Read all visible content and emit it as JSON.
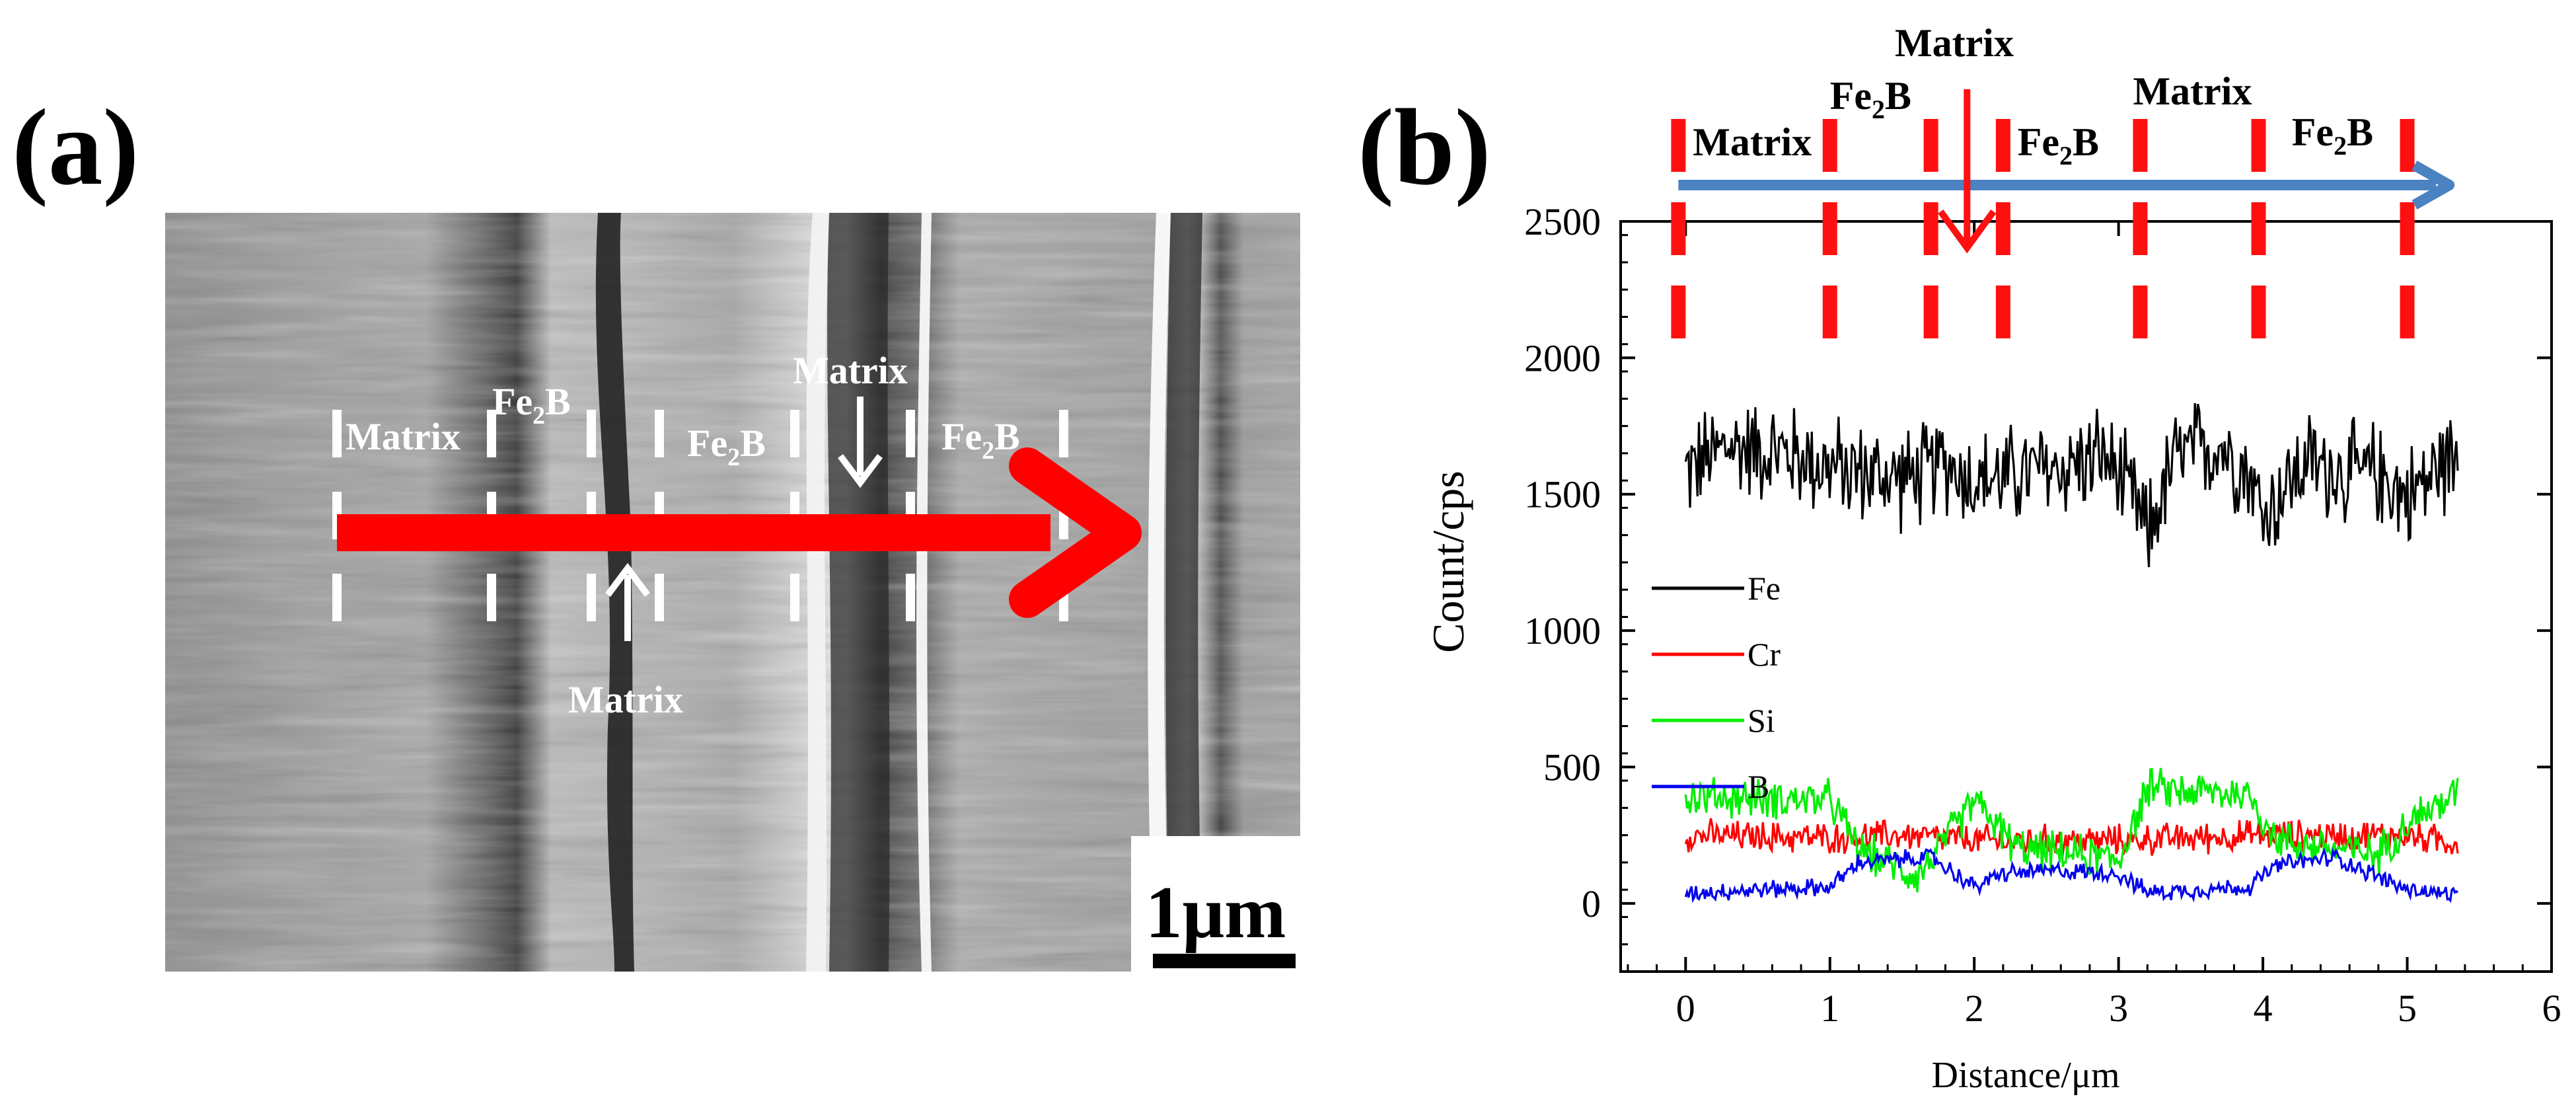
{
  "figure": {
    "panel_a_label": "(a)",
    "panel_b_label": "(b)"
  },
  "sem": {
    "scale_bar": "1μm",
    "phase_labels": [
      {
        "name": "Matrix",
        "sub": ""
      },
      {
        "name": "Fe",
        "sub": "2",
        "suffix": "B"
      },
      {
        "name": "Fe",
        "sub": "2",
        "suffix": "B"
      },
      {
        "name": "Matrix",
        "sub": ""
      },
      {
        "name": "Fe",
        "sub": "2",
        "suffix": "B"
      }
    ],
    "lower_label": "Matrix",
    "colors": {
      "arrow": "#ff0000",
      "dash": "#ffffff"
    }
  },
  "chart_data": {
    "type": "line",
    "title": "",
    "xlabel": "Distance/μm",
    "ylabel": "Count/cps",
    "xlim": [
      -0.45,
      6
    ],
    "ylim": [
      -250,
      2500
    ],
    "xticks": [
      0,
      1,
      2,
      3,
      4,
      5,
      6
    ],
    "yticks": [
      0,
      500,
      1000,
      1500,
      2000,
      2500
    ],
    "legend_position": "center-left",
    "series": [
      {
        "name": "Fe",
        "color": "#000000",
        "x_range": [
          0,
          5.35
        ],
        "profile": [
          [
            0,
            1580
          ],
          [
            0.3,
            1680
          ],
          [
            0.7,
            1650
          ],
          [
            1.0,
            1600
          ],
          [
            1.3,
            1570
          ],
          [
            1.6,
            1560
          ],
          [
            1.8,
            1620
          ],
          [
            2.0,
            1550
          ],
          [
            2.3,
            1570
          ],
          [
            2.6,
            1600
          ],
          [
            2.9,
            1640
          ],
          [
            3.1,
            1480
          ],
          [
            3.2,
            1350
          ],
          [
            3.4,
            1640
          ],
          [
            3.7,
            1680
          ],
          [
            3.9,
            1590
          ],
          [
            4.0,
            1420
          ],
          [
            4.3,
            1620
          ],
          [
            4.6,
            1570
          ],
          [
            4.8,
            1580
          ],
          [
            5.0,
            1490
          ],
          [
            5.35,
            1660
          ]
        ],
        "noise": 230
      },
      {
        "name": "Cr",
        "color": "#ff0000",
        "x_range": [
          0,
          5.35
        ],
        "profile": [
          [
            0,
            250
          ],
          [
            1.0,
            240
          ],
          [
            1.5,
            250
          ],
          [
            2.0,
            230
          ],
          [
            3.0,
            230
          ],
          [
            4.0,
            250
          ],
          [
            5.0,
            250
          ],
          [
            5.35,
            220
          ]
        ],
        "noise": 70
      },
      {
        "name": "Si",
        "color": "#00ee00",
        "x_range": [
          0,
          5.35
        ],
        "profile": [
          [
            0,
            390
          ],
          [
            1.0,
            380
          ],
          [
            1.2,
            200
          ],
          [
            1.6,
            100
          ],
          [
            1.8,
            230
          ],
          [
            2.0,
            380
          ],
          [
            2.3,
            200
          ],
          [
            2.7,
            180
          ],
          [
            3.0,
            160
          ],
          [
            3.2,
            420
          ],
          [
            3.9,
            400
          ],
          [
            4.1,
            230
          ],
          [
            4.5,
            200
          ],
          [
            4.8,
            180
          ],
          [
            5.0,
            300
          ],
          [
            5.35,
            400
          ]
        ],
        "noise": 90
      },
      {
        "name": "B",
        "color": "#0000ee",
        "x_range": [
          0,
          5.35
        ],
        "profile": [
          [
            0,
            40
          ],
          [
            1.0,
            60
          ],
          [
            1.2,
            150
          ],
          [
            1.7,
            170
          ],
          [
            2.0,
            60
          ],
          [
            2.2,
            110
          ],
          [
            2.6,
            120
          ],
          [
            3.0,
            110
          ],
          [
            3.2,
            40
          ],
          [
            3.9,
            60
          ],
          [
            4.1,
            140
          ],
          [
            4.5,
            170
          ],
          [
            5.0,
            50
          ],
          [
            5.35,
            30
          ]
        ],
        "noise": 40
      }
    ],
    "annotations": {
      "phase_labels": [
        "Matrix",
        "Fe2B",
        "Matrix",
        "Fe2B",
        "Matrix",
        "Fe2B"
      ],
      "boundaries_x": [
        -0.05,
        1.0,
        1.7,
        2.2,
        3.15,
        3.97,
        5.0
      ]
    }
  }
}
